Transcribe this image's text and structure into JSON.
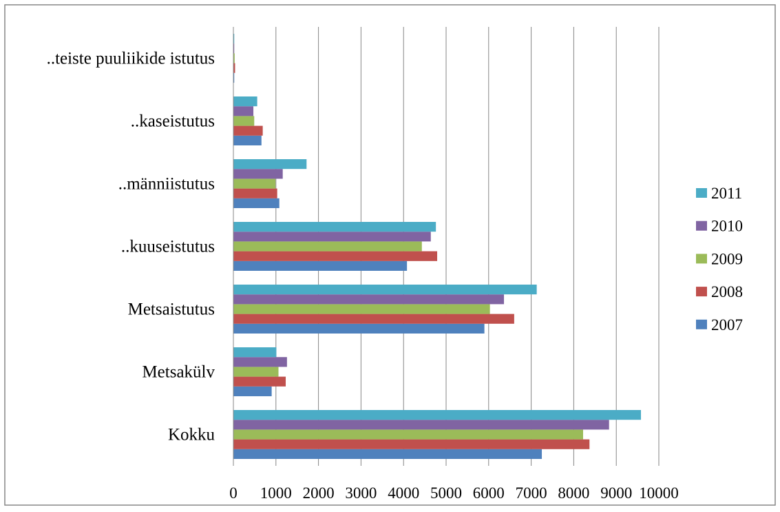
{
  "chart_data": {
    "type": "bar",
    "orientation": "horizontal",
    "title": "",
    "xlabel": "",
    "ylabel": "",
    "categories": [
      "Kokku",
      "Metsakülv",
      "Metsaistutus",
      "..kuuseistutus",
      "..männiistutus",
      "..kaseistutus",
      "..teiste puuliikide istutus"
    ],
    "series": [
      {
        "name": "2007",
        "color": "#4F81BD",
        "values": [
          7250,
          900,
          5900,
          4080,
          1080,
          660,
          20
        ]
      },
      {
        "name": "2008",
        "color": "#C0504D",
        "values": [
          8370,
          1230,
          6600,
          4790,
          1030,
          690,
          40
        ]
      },
      {
        "name": "2009",
        "color": "#9BBB59",
        "values": [
          8220,
          1060,
          6030,
          4430,
          990,
          490,
          30
        ]
      },
      {
        "name": "2010",
        "color": "#8064A2",
        "values": [
          8830,
          1260,
          6360,
          4640,
          1160,
          470,
          20
        ]
      },
      {
        "name": "2011",
        "color": "#4BACC6",
        "values": [
          9580,
          1010,
          7130,
          4760,
          1720,
          560,
          20
        ]
      }
    ],
    "xlim": [
      0,
      10000
    ],
    "x_ticks": [
      0,
      1000,
      2000,
      3000,
      4000,
      5000,
      6000,
      7000,
      8000,
      9000,
      10000
    ],
    "x_tick_labels": [
      "0",
      "1000",
      "2000",
      "3000",
      "4000",
      "5000",
      "6000",
      "7000",
      "8000",
      "9000",
      "10000"
    ],
    "grid": "vertical",
    "legend_position": "right"
  }
}
